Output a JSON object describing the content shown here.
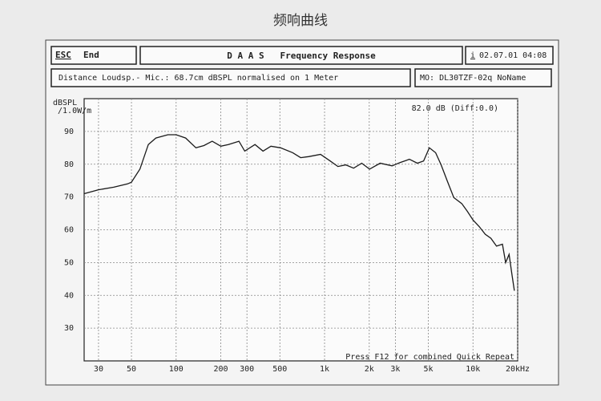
{
  "toolbar": {
    "esc": "ESC",
    "end": "End",
    "app_title": "D A A S   Frequency Response",
    "icon": "i",
    "datetime": "02.07.01 04:08",
    "info": "Distance Loudsp.- Mic.: 68.7cm dBSPL normalised on 1 Meter",
    "model": "MO: DL30TZF-02q NoName"
  },
  "chart_data": {
    "type": "line",
    "title": "频响曲线",
    "y_label": "dBSPL /1.0W/m",
    "annotations": [
      "82.0 dB (Diff:0.0)",
      "Press F12 for combined Quick Repeat"
    ],
    "x_scale": "log",
    "xlim": [
      24,
      20000
    ],
    "ylim": [
      20,
      100
    ],
    "grid": true,
    "xticks": [
      30,
      50,
      100,
      200,
      300,
      500,
      {
        "value": 1000,
        "label": "1k"
      },
      {
        "value": 2000,
        "label": "2k"
      },
      {
        "value": 3000,
        "label": "3k"
      },
      {
        "value": 5000,
        "label": "5k"
      },
      {
        "value": 10000,
        "label": "10k"
      },
      {
        "value": 20000,
        "label": "20kHz"
      }
    ],
    "yticks": [
      30,
      40,
      50,
      60,
      70,
      80,
      90
    ],
    "x": [
      24,
      30,
      38,
      47,
      50,
      57,
      65,
      73,
      88,
      100,
      116,
      136,
      154,
      175,
      200,
      225,
      265,
      290,
      340,
      385,
      435,
      505,
      610,
      690,
      780,
      940,
      1090,
      1230,
      1390,
      1570,
      1780,
      2010,
      2370,
      2850,
      3220,
      3730,
      4220,
      4650,
      5080,
      5600,
      6100,
      6720,
      7430,
      8400,
      9170,
      10000,
      11000,
      12100,
      13200,
      14400,
      15800,
      16600,
      17500,
      18300,
      19000
    ],
    "series": [
      {
        "name": "MO",
        "color": "#1a1a1a",
        "values": [
          71,
          72.2,
          73,
          74,
          74.5,
          78.5,
          86,
          88,
          89,
          89,
          88,
          85,
          85.7,
          87,
          85.5,
          86,
          87,
          84,
          86,
          84,
          85.5,
          85,
          83.5,
          82,
          82.3,
          83,
          81,
          79.3,
          79.8,
          78.8,
          80.3,
          78.5,
          80.3,
          79.5,
          80.5,
          81.5,
          80.3,
          81,
          85,
          83.5,
          79.8,
          74.8,
          69.8,
          68,
          65.6,
          63,
          61,
          58.6,
          57.4,
          55,
          55.6,
          50,
          52.5,
          46.3,
          41.4
        ]
      }
    ]
  }
}
